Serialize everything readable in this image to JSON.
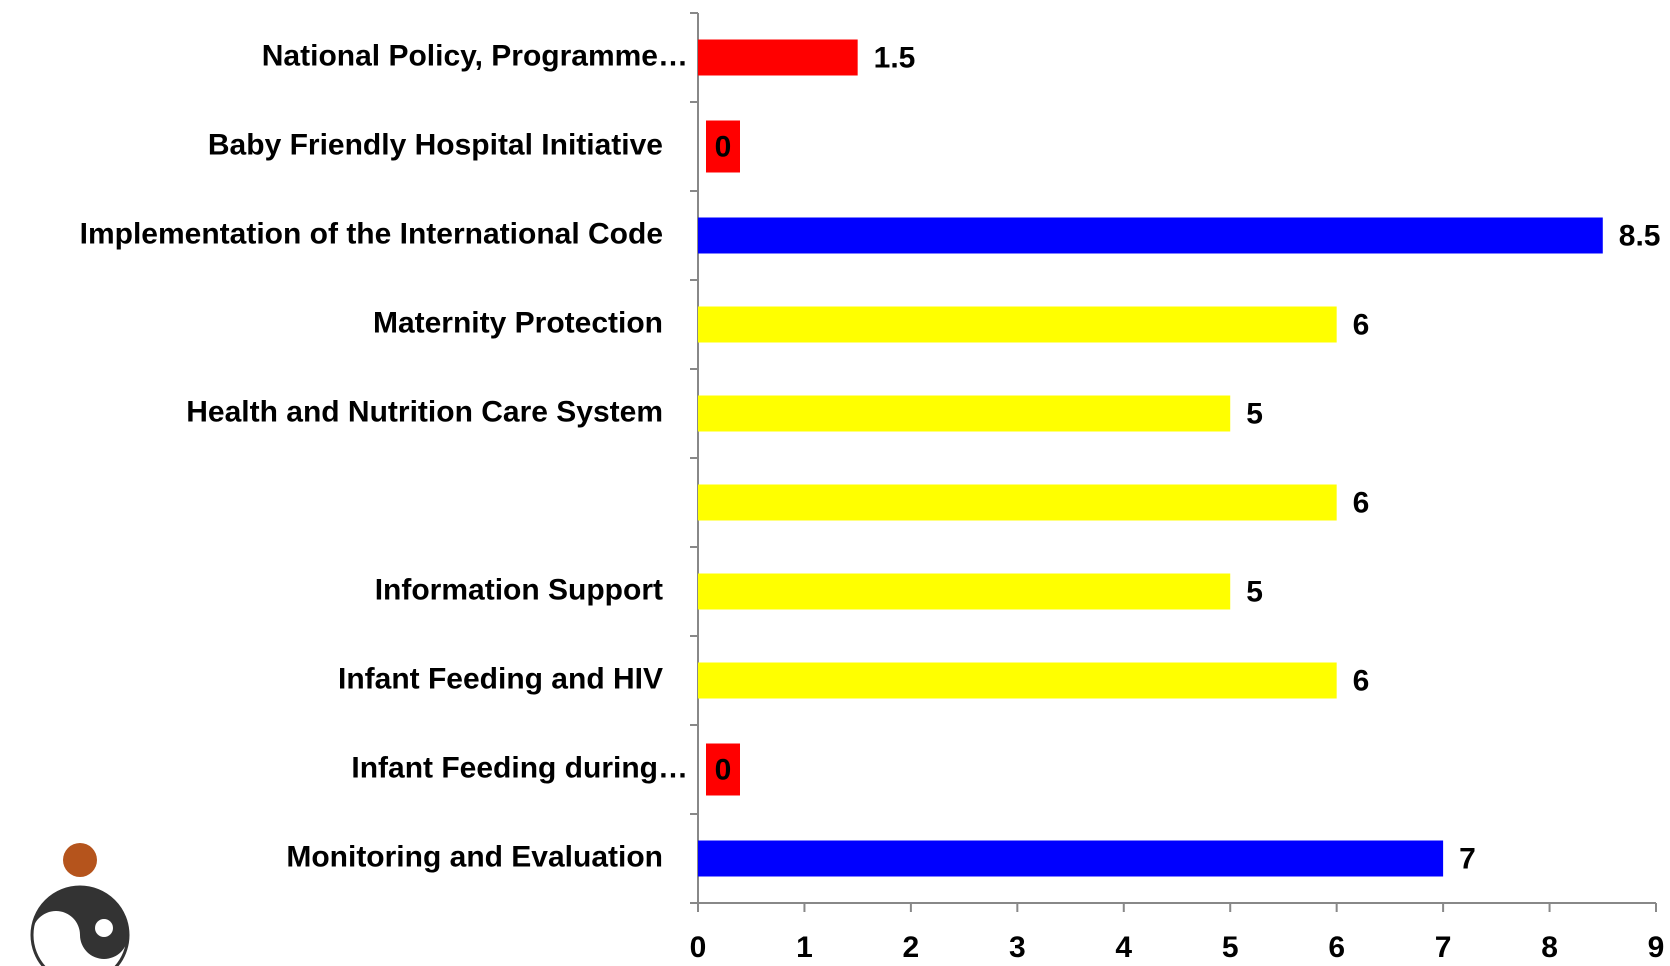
{
  "chart_data": {
    "type": "barh",
    "categories": [
      "National Policy, Programme…",
      "Baby Friendly Hospital Initiative",
      "Implementation of the International Code",
      "Maternity Protection",
      "Health and Nutrition Care System",
      null,
      "Information Support",
      "Infant Feeding and HIV",
      "Infant Feeding during…",
      "Monitoring and Evaluation"
    ],
    "values": [
      1.5,
      0,
      8.5,
      6,
      5,
      6,
      5,
      6,
      0,
      7
    ],
    "colors": [
      "#ff0000",
      "#ff0000",
      "#0000ff",
      "#ffff00",
      "#ffff00",
      "#ffff00",
      "#ffff00",
      "#ffff00",
      "#ff0000",
      "#0000ff"
    ],
    "xlim": [
      0,
      9
    ],
    "xticks": [
      0,
      1,
      2,
      3,
      4,
      5,
      6,
      7,
      8,
      9
    ]
  }
}
